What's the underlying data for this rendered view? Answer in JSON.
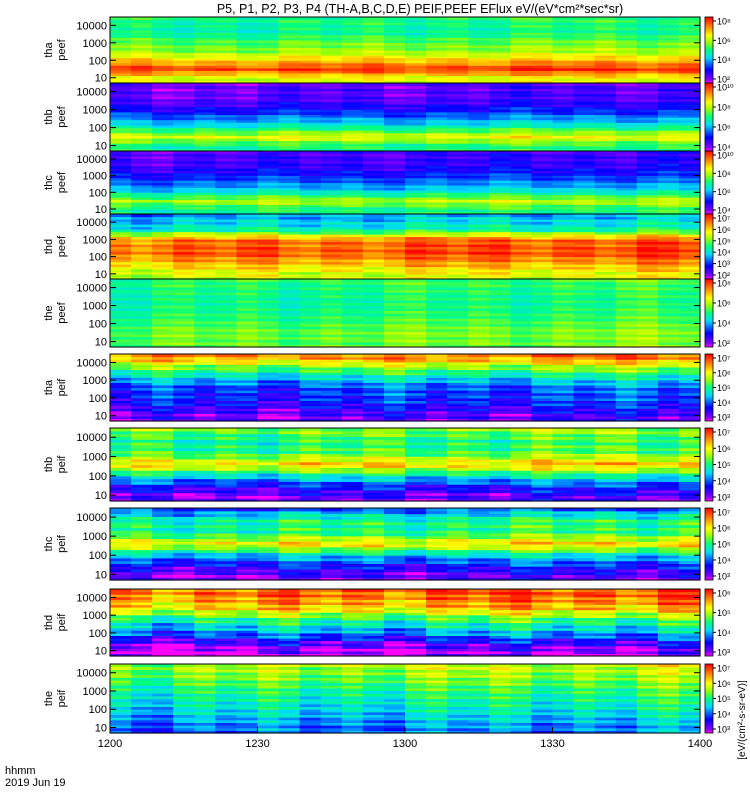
{
  "title": "P5, P1, P2, P3, P4 (TH-A,B,C,D,E) PEIF,PEEF EFlux eV/(eV*cm²*sec*sr)",
  "colorbar_unit_label": "[eV/(cm²-s-sr-eV)]",
  "chart_data": {
    "type": "heatmap",
    "x_ticks": [
      "1200",
      "1230",
      "1300",
      "1330",
      "1400"
    ],
    "x_range": [
      "12:00",
      "14:00"
    ],
    "xlabel": "hhmm",
    "date_label": "2019 Jun 19",
    "y_scale": "log",
    "y_range_eV": [
      5,
      30000
    ],
    "y_ticks": [
      "10000",
      "1000",
      "100",
      "10"
    ],
    "colormap": "rainbow",
    "panels": [
      {
        "probe": "tha",
        "quantity": "peef",
        "cbar_ticks": [
          "10⁸",
          "10⁶",
          "10⁴",
          "10²"
        ],
        "cbar_log_range": [
          1,
          9
        ],
        "profile": [
          [
            1,
            6.5
          ],
          [
            1.5,
            8.6
          ],
          [
            2.5,
            6.0
          ],
          [
            3.2,
            5.4
          ],
          [
            3.6,
            4.8
          ],
          [
            4.5,
            5.1
          ]
        ]
      },
      {
        "probe": "thb",
        "quantity": "peef",
        "cbar_ticks": [
          "10¹⁰",
          "10⁸",
          "10⁶",
          "10⁴"
        ],
        "cbar_log_range": [
          3,
          11
        ],
        "profile": [
          [
            1,
            7.0
          ],
          [
            1.5,
            8.6
          ],
          [
            2.2,
            6.2
          ],
          [
            3,
            4.6
          ],
          [
            3.6,
            3.9
          ],
          [
            4.5,
            3.8
          ]
        ]
      },
      {
        "probe": "thc",
        "quantity": "peef",
        "cbar_ticks": [
          "10¹⁰",
          "10⁸",
          "10⁶",
          "10⁴"
        ],
        "cbar_log_range": [
          3,
          11
        ],
        "profile": [
          [
            1,
            7.0
          ],
          [
            1.5,
            8.2
          ],
          [
            2.2,
            6.0
          ],
          [
            3,
            4.8
          ],
          [
            3.6,
            4.2
          ],
          [
            4.5,
            4.0
          ]
        ]
      },
      {
        "probe": "thd",
        "quantity": "peef",
        "cbar_ticks": [
          "10⁷",
          "10⁶",
          "10⁵",
          "10⁴",
          "10³",
          "10²"
        ],
        "cbar_log_range": [
          1.5,
          7.5
        ],
        "profile": [
          [
            1,
            5.6
          ],
          [
            1.5,
            6.2
          ],
          [
            2.2,
            7.0
          ],
          [
            3,
            6.8
          ],
          [
            3.6,
            4.2
          ],
          [
            4.5,
            3.5
          ]
        ]
      },
      {
        "probe": "the",
        "quantity": "peef",
        "cbar_ticks": [
          "10⁸",
          "10⁶",
          "10⁴",
          "10²"
        ],
        "cbar_log_range": [
          1,
          9
        ],
        "profile": [
          [
            1,
            5.6
          ],
          [
            1.5,
            5.7
          ],
          [
            2.5,
            5.1
          ],
          [
            3.2,
            4.9
          ],
          [
            4,
            5.1
          ],
          [
            4.5,
            5.3
          ]
        ]
      },
      {
        "probe": "tha",
        "quantity": "peif",
        "cbar_ticks": [
          "10⁷",
          "10⁶",
          "10⁵",
          "10⁴",
          "10³"
        ],
        "cbar_log_range": [
          2.5,
          7.5
        ],
        "profile": [
          [
            1,
            3.0
          ],
          [
            1.8,
            3.6
          ],
          [
            2.6,
            3.8
          ],
          [
            3.2,
            4.6
          ],
          [
            3.8,
            5.6
          ],
          [
            4.2,
            6.6
          ],
          [
            4.5,
            6.8
          ]
        ]
      },
      {
        "probe": "thb",
        "quantity": "peif",
        "cbar_ticks": [
          "10⁷",
          "10⁶",
          "10⁵",
          "10⁴",
          "10³"
        ],
        "cbar_log_range": [
          2.5,
          7.5
        ],
        "profile": [
          [
            1,
            3.0
          ],
          [
            1.5,
            3.6
          ],
          [
            2.0,
            4.6
          ],
          [
            2.6,
            6.4
          ],
          [
            3.2,
            5.2
          ],
          [
            3.8,
            5.0
          ],
          [
            4.5,
            5.6
          ]
        ]
      },
      {
        "probe": "thc",
        "quantity": "peif",
        "cbar_ticks": [
          "10⁷",
          "10⁶",
          "10⁵",
          "10⁴",
          "10³"
        ],
        "cbar_log_range": [
          2.5,
          7.5
        ],
        "profile": [
          [
            1,
            3.0
          ],
          [
            1.5,
            3.6
          ],
          [
            2.0,
            4.4
          ],
          [
            2.6,
            6.3
          ],
          [
            3.2,
            5.0
          ],
          [
            3.8,
            5.0
          ],
          [
            4.3,
            4.2
          ],
          [
            4.5,
            3.5
          ]
        ]
      },
      {
        "probe": "thd",
        "quantity": "peif",
        "cbar_ticks": [
          "10⁶",
          "10⁵",
          "10⁴",
          "10³"
        ],
        "cbar_log_range": [
          2.5,
          6.5
        ],
        "profile": [
          [
            1,
            2.6
          ],
          [
            1.5,
            3.1
          ],
          [
            2.0,
            3.8
          ],
          [
            2.8,
            4.6
          ],
          [
            3.4,
            5.6
          ],
          [
            4.2,
            6.1
          ],
          [
            4.5,
            6.1
          ]
        ]
      },
      {
        "probe": "the",
        "quantity": "peif",
        "cbar_ticks": [
          "10⁷",
          "10⁶",
          "10⁵",
          "10⁴",
          "10³"
        ],
        "cbar_log_range": [
          2.5,
          7.5
        ],
        "profile": [
          [
            1,
            4.0
          ],
          [
            2.0,
            4.6
          ],
          [
            3.0,
            5.0
          ],
          [
            3.8,
            5.5
          ],
          [
            4.5,
            5.8
          ]
        ]
      }
    ]
  }
}
